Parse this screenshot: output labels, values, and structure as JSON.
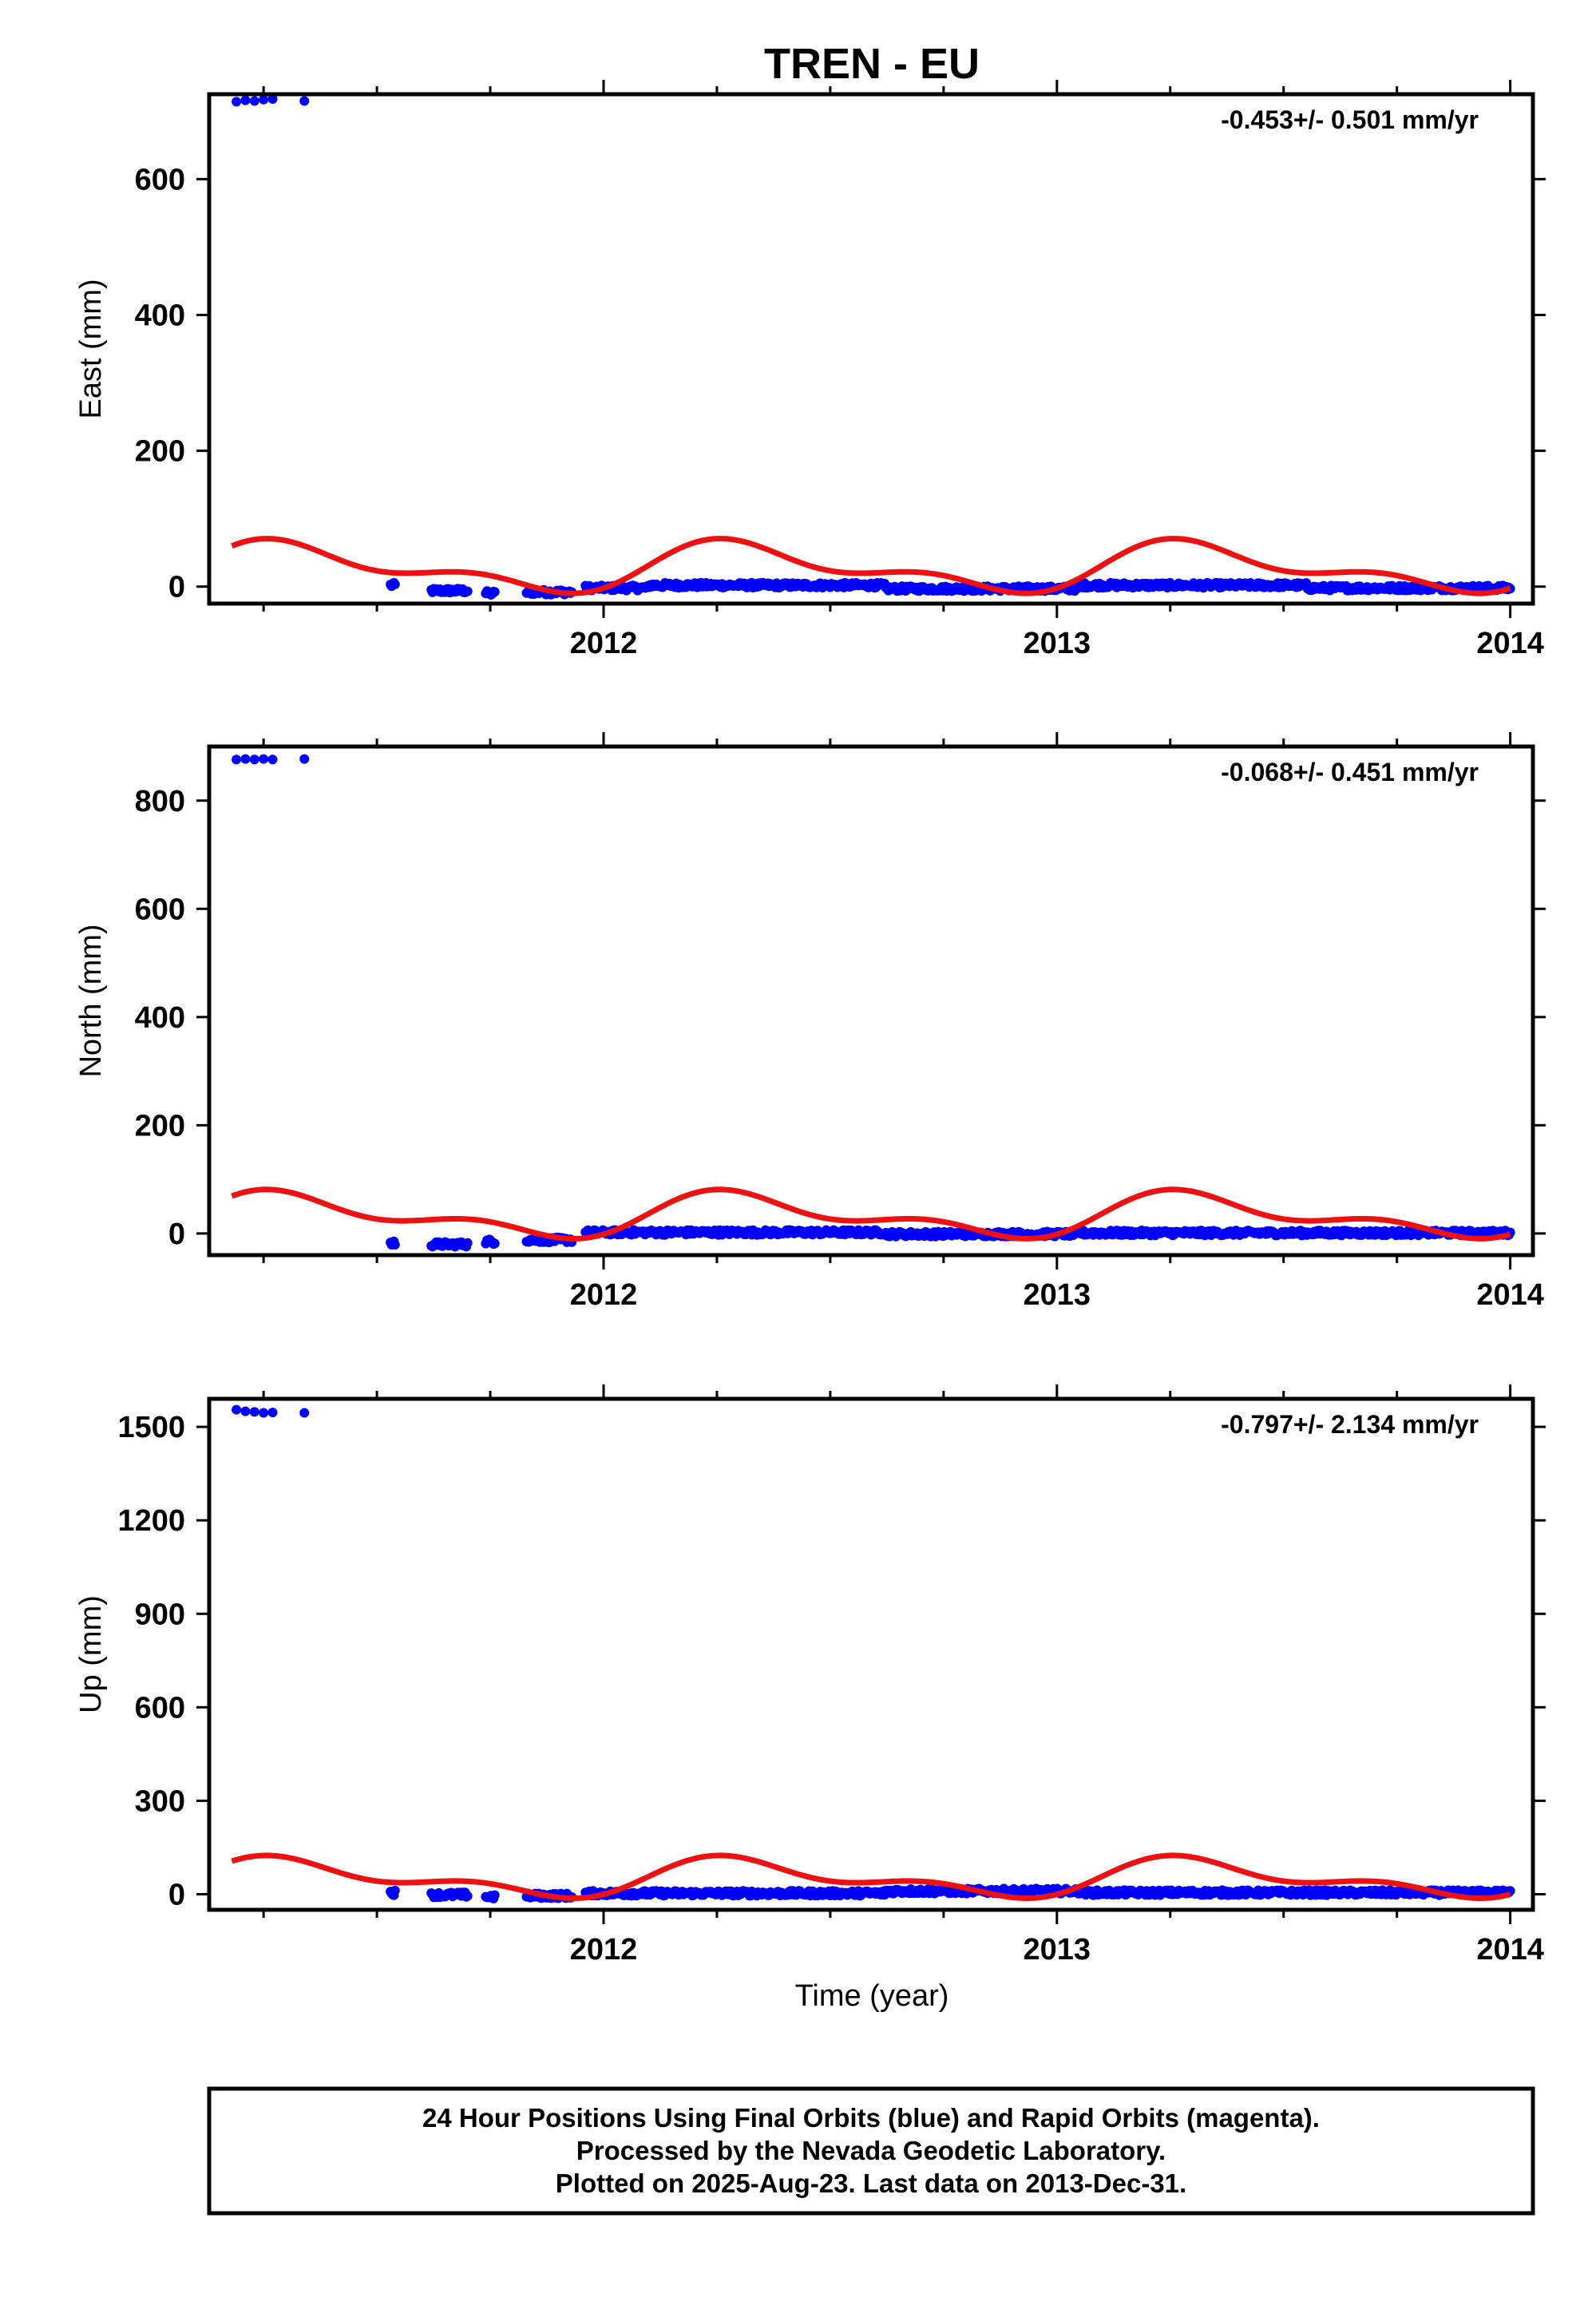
{
  "title": "TREN - EU",
  "xlabel": "Time (year)",
  "colors": {
    "data": "#0000ff",
    "model": "#ee1111",
    "frame": "#000000"
  },
  "footer": {
    "lines": [
      "24 Hour Positions Using Final Orbits (blue) and Rapid Orbits (magenta).",
      "Processed by the Nevada Geodetic Laboratory.",
      "Plotted on 2025-Aug-23. Last data on 2013-Dec-31."
    ]
  },
  "chart_data": [
    {
      "type": "scatter",
      "name": "east",
      "ylabel": "East (mm)",
      "rate_text": "-0.453+/- 0.501 mm/yr",
      "xlim": [
        2011.13,
        2014.05
      ],
      "ylim": [
        -25,
        725
      ],
      "xticks": [
        2012,
        2013,
        2014
      ],
      "yticks": [
        0,
        200,
        400,
        600
      ],
      "outliers": [
        [
          2011.19,
          714
        ],
        [
          2011.21,
          716
        ],
        [
          2011.23,
          715
        ],
        [
          2011.25,
          717
        ],
        [
          2011.27,
          718
        ],
        [
          2011.34,
          715
        ]
      ],
      "segments": [
        {
          "x0": 2011.53,
          "x1": 2011.54,
          "y": 2
        },
        {
          "x0": 2011.62,
          "x1": 2011.7,
          "y": -6
        },
        {
          "x0": 2011.74,
          "x1": 2011.76,
          "y": -10
        },
        {
          "x0": 2011.83,
          "x1": 2011.93,
          "y": -8
        },
        {
          "x0": 2011.96,
          "x1": 2012.1,
          "y": -2
        },
        {
          "x0": 2012.1,
          "x1": 2012.62,
          "y": 2
        },
        {
          "x0": 2012.62,
          "x1": 2013.05,
          "y": -3
        },
        {
          "x0": 2013.05,
          "x1": 2013.55,
          "y": 2
        },
        {
          "x0": 2013.55,
          "x1": 2014.0,
          "y": -2
        }
      ],
      "model": {
        "mean": 27,
        "annual_amp": 30,
        "semiannual_amp": 17,
        "annual_peak": 2012.32,
        "semiannual_peak": 2012.23,
        "x0": 2011.18,
        "x1": 2014.0
      }
    },
    {
      "type": "scatter",
      "name": "north",
      "ylabel": "North (mm)",
      "rate_text": "-0.068+/- 0.451 mm/yr",
      "xlim": [
        2011.13,
        2014.05
      ],
      "ylim": [
        -40,
        900
      ],
      "xticks": [
        2012,
        2013,
        2014
      ],
      "yticks": [
        0,
        200,
        400,
        600,
        800
      ],
      "outliers": [
        [
          2011.19,
          876
        ],
        [
          2011.21,
          877
        ],
        [
          2011.23,
          876
        ],
        [
          2011.25,
          877
        ],
        [
          2011.27,
          876
        ],
        [
          2011.34,
          877
        ]
      ],
      "segments": [
        {
          "x0": 2011.53,
          "x1": 2011.54,
          "y": -18
        },
        {
          "x0": 2011.62,
          "x1": 2011.7,
          "y": -20
        },
        {
          "x0": 2011.74,
          "x1": 2011.76,
          "y": -15
        },
        {
          "x0": 2011.83,
          "x1": 2011.93,
          "y": -12
        },
        {
          "x0": 2011.96,
          "x1": 2012.62,
          "y": 2
        },
        {
          "x0": 2012.62,
          "x1": 2013.05,
          "y": -1
        },
        {
          "x0": 2013.05,
          "x1": 2014.0,
          "y": 1
        }
      ],
      "model": {
        "mean": 32,
        "annual_amp": 33,
        "semiannual_amp": 20,
        "annual_peak": 2012.32,
        "semiannual_peak": 2012.23,
        "x0": 2011.18,
        "x1": 2014.0
      }
    },
    {
      "type": "scatter",
      "name": "up",
      "ylabel": "Up (mm)",
      "rate_text": "-0.797+/- 2.134 mm/yr",
      "xlim": [
        2011.13,
        2014.05
      ],
      "ylim": [
        -50,
        1590
      ],
      "xticks": [
        2012,
        2013,
        2014
      ],
      "yticks": [
        0,
        300,
        600,
        900,
        1200,
        1500
      ],
      "outliers": [
        [
          2011.19,
          1555
        ],
        [
          2011.21,
          1550
        ],
        [
          2011.23,
          1548
        ],
        [
          2011.25,
          1545
        ],
        [
          2011.27,
          1546
        ],
        [
          2011.34,
          1545
        ]
      ],
      "segments": [
        {
          "x0": 2011.53,
          "x1": 2011.54,
          "y": 5
        },
        {
          "x0": 2011.62,
          "x1": 2011.7,
          "y": -2
        },
        {
          "x0": 2011.74,
          "x1": 2011.76,
          "y": -8
        },
        {
          "x0": 2011.83,
          "x1": 2011.93,
          "y": -5
        },
        {
          "x0": 2011.96,
          "x1": 2012.62,
          "y": 3
        },
        {
          "x0": 2012.62,
          "x1": 2013.05,
          "y": 10
        },
        {
          "x0": 2013.05,
          "x1": 2014.0,
          "y": 5
        }
      ],
      "model": {
        "mean": 50,
        "annual_amp": 50,
        "semiannual_amp": 30,
        "annual_peak": 2012.32,
        "semiannual_peak": 2012.23,
        "x0": 2011.18,
        "x1": 2014.0
      }
    }
  ]
}
